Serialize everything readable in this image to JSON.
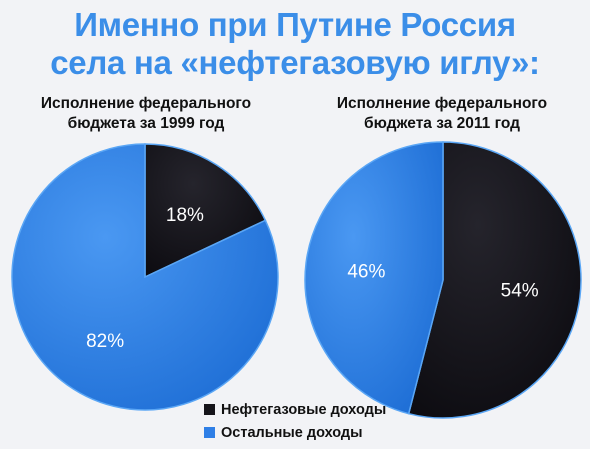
{
  "title_lines": [
    "Именно при Путине Россия",
    "села на «нефтегазовую иглу»:"
  ],
  "colors": {
    "title": "#3b8ee8",
    "oil_gas": "#15141a",
    "other": "#2f7fe6",
    "background": "#f2f3f6"
  },
  "legend": [
    {
      "label": "Нефтегазовые доходы",
      "color": "#15141a"
    },
    {
      "label": "Остальные доходы",
      "color": "#2f7fe6"
    }
  ],
  "chart_data": [
    {
      "type": "pie",
      "title": "Исполнение федерального бюджета за 1999 год",
      "title_lines": [
        "Исполнение федерального",
        "бюджета за 1999 год"
      ],
      "slices": [
        {
          "label": "Нефтегазовые доходы",
          "value": 18,
          "display": "18%",
          "color": "#15141a"
        },
        {
          "label": "Остальные доходы",
          "value": 82,
          "display": "82%",
          "color": "#2f7fe6"
        }
      ]
    },
    {
      "type": "pie",
      "title": "Исполнение федерального бюджета за 2011 год",
      "title_lines": [
        "Исполнение федерального",
        "бюджета за 2011 год"
      ],
      "slices": [
        {
          "label": "Нефтегазовые доходы",
          "value": 54,
          "display": "54%",
          "color": "#15141a"
        },
        {
          "label": "Остальные доходы",
          "value": 46,
          "display": "46%",
          "color": "#2f7fe6"
        }
      ]
    }
  ]
}
